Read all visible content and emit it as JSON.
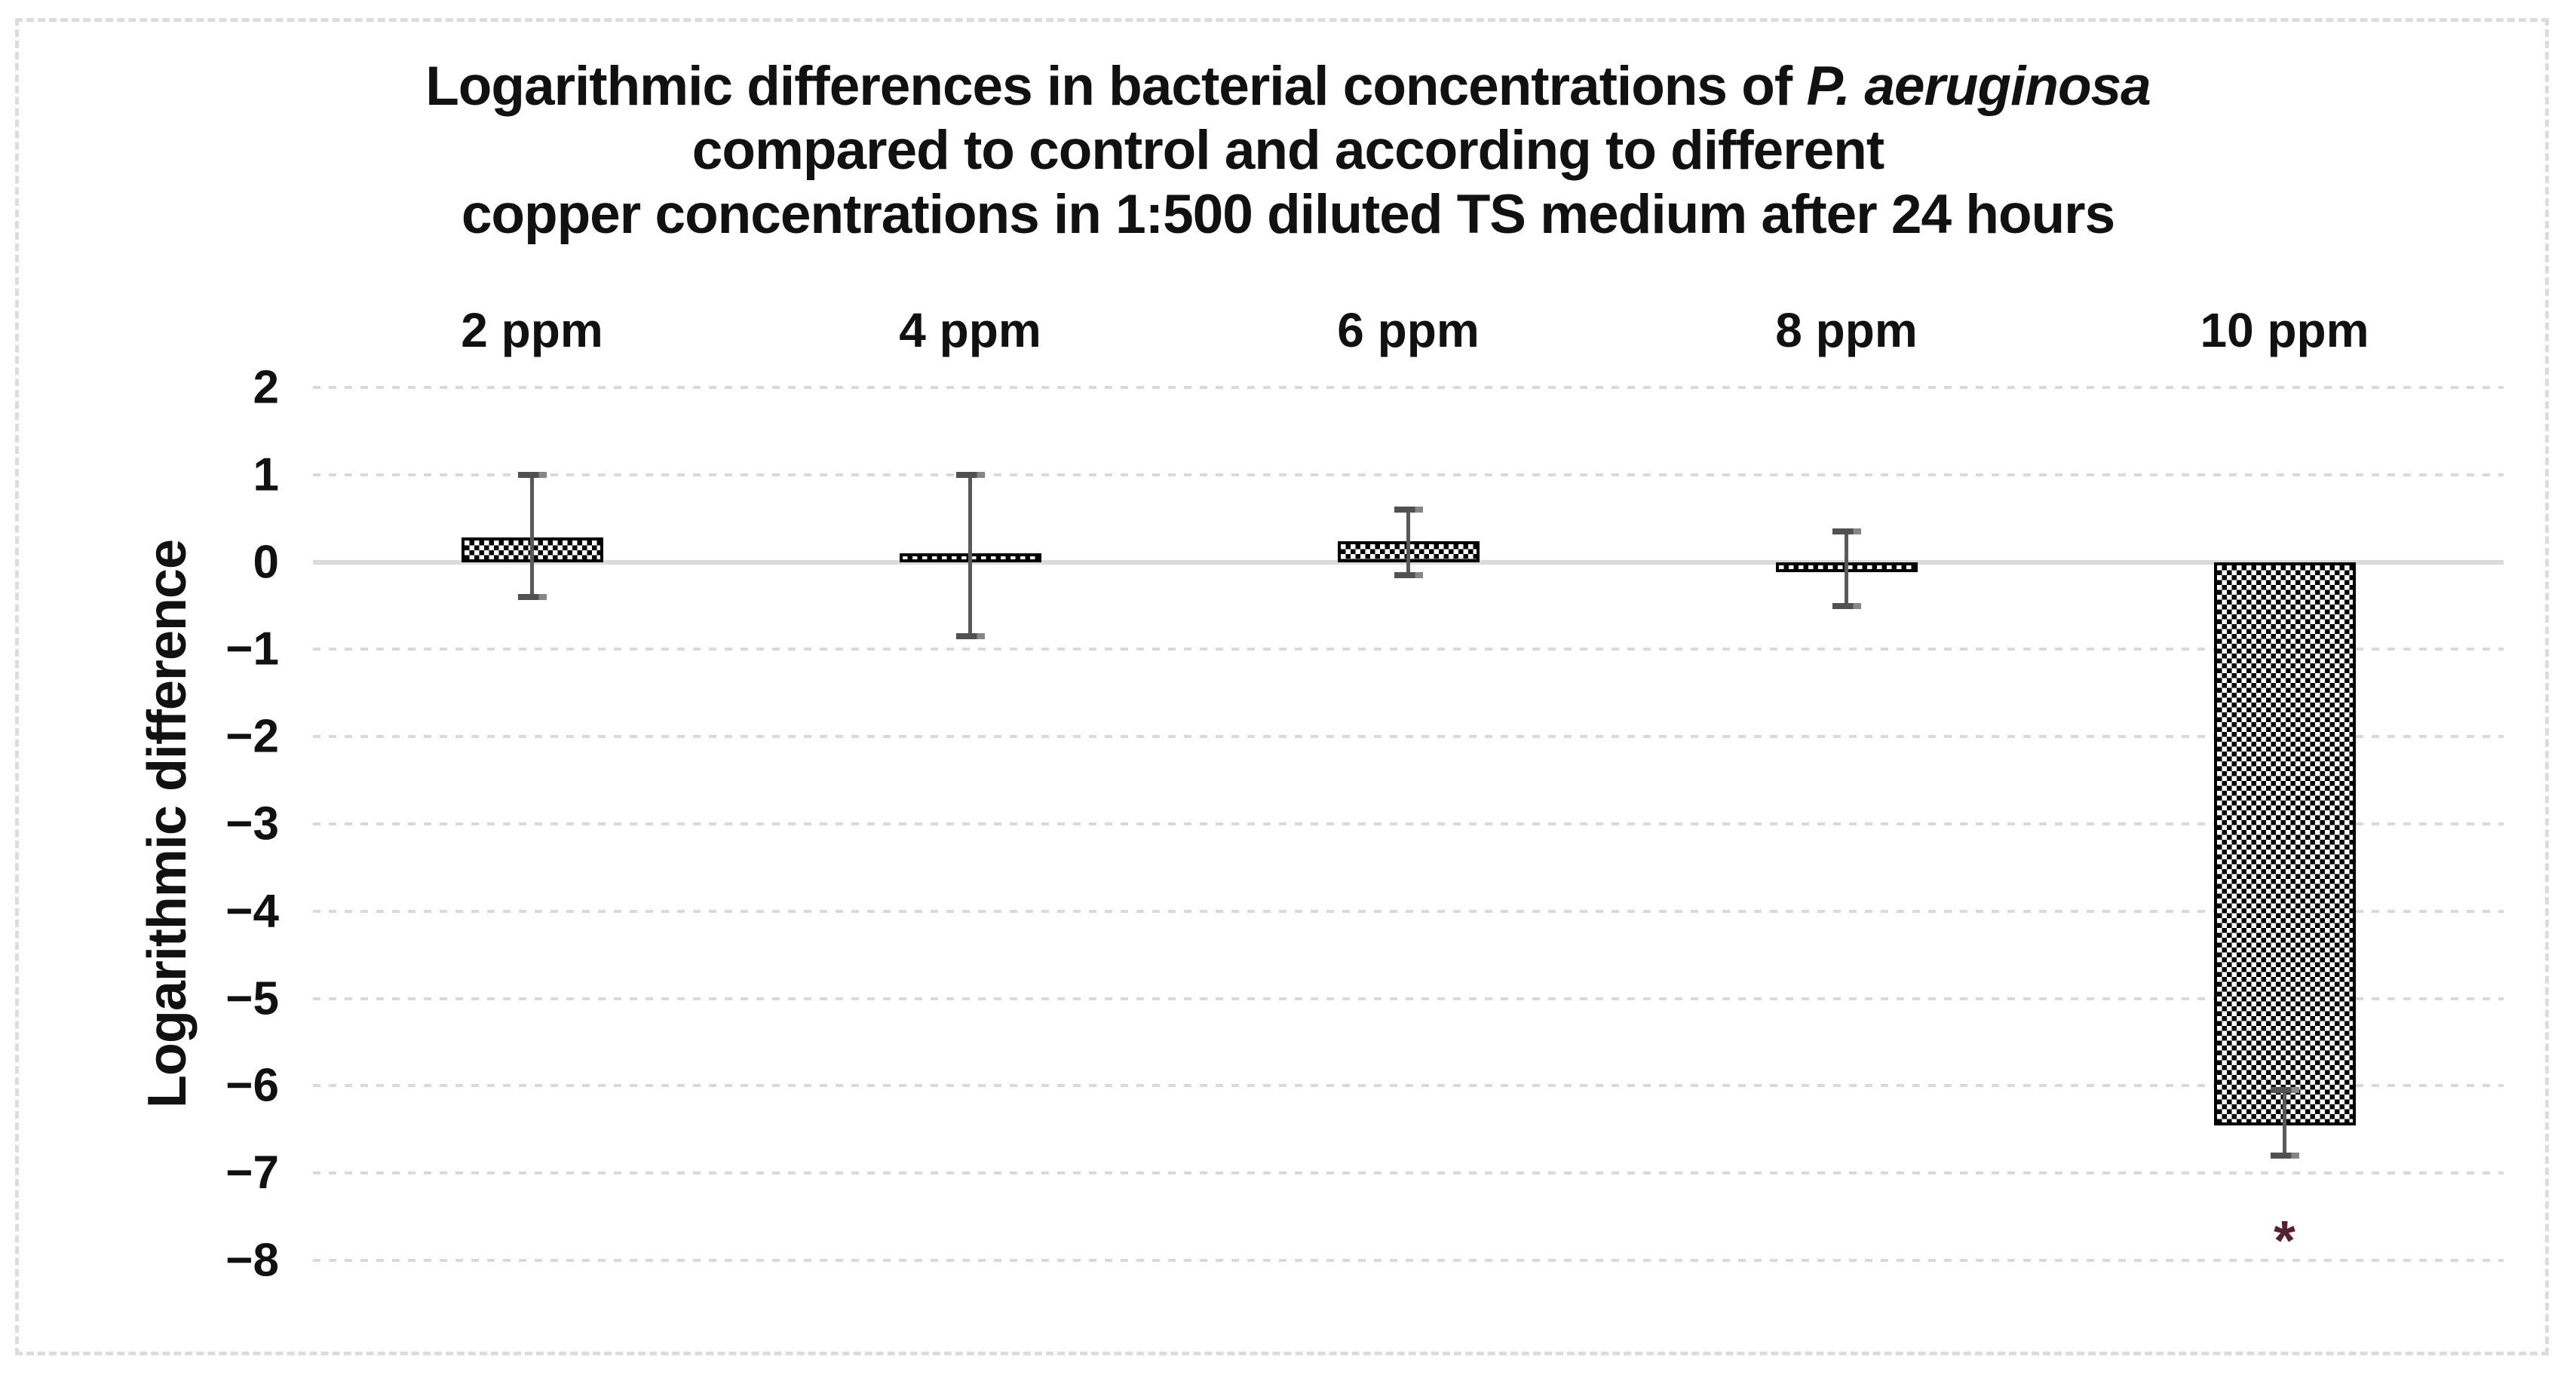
{
  "figure": {
    "background": "#ffffff",
    "outer_border_color": "#dcdcdc",
    "outer_border_style": "dashed"
  },
  "chart_data": {
    "type": "bar",
    "title": {
      "line1_prefix": "Logarithmic differences in bacterial concentrations of ",
      "line1_italic": "P. aeruginosa",
      "line2": "compared to control and according to different",
      "line3": "copper concentrations in 1:500 diluted TS medium after 24 hours"
    },
    "categories": [
      "2 ppm",
      "4 ppm",
      "6 ppm",
      "8 ppm",
      "10 ppm"
    ],
    "values": [
      0.28,
      0.1,
      0.24,
      -0.12,
      -6.45
    ],
    "error_bars": {
      "upper_ends": [
        1.0,
        1.0,
        0.6,
        0.35,
        -6.05
      ],
      "lower_ends": [
        -0.4,
        -0.85,
        -0.15,
        -0.5,
        -6.8
      ]
    },
    "ylabel": "Logarithmic difference",
    "yticks": [
      "2",
      "1",
      "0",
      "−1",
      "−2",
      "−3",
      "−4",
      "−5",
      "−6",
      "−7",
      "−8"
    ],
    "ytick_values": [
      2,
      1,
      0,
      -1,
      -2,
      -3,
      -4,
      -5,
      -6,
      -7,
      -8
    ],
    "ylim": [
      2,
      -8
    ],
    "grid": "horizontal-dashed",
    "zero_line": "solid",
    "legend": "none",
    "bar_style": {
      "fill_pattern": "checkerboard",
      "pattern_color": "#000000",
      "pattern_bg": "#ffffff",
      "border_color": "#000000"
    },
    "error_bar_color": "#595959",
    "gridline_color": "#d9d9d9",
    "annotation": {
      "text": "*",
      "category": "10 ppm",
      "y": -7.6,
      "color": "#552233"
    }
  }
}
